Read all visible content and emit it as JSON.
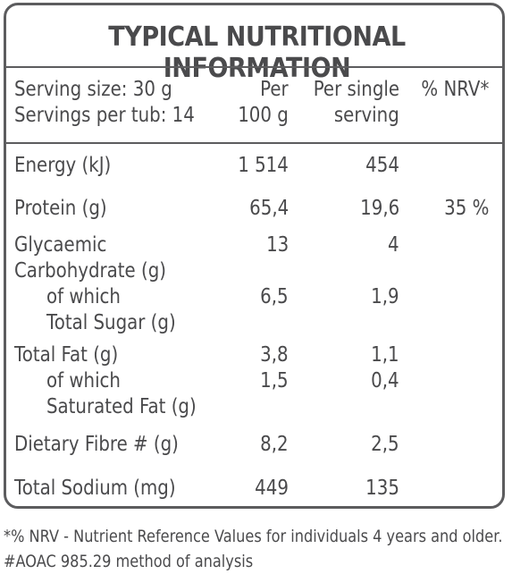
{
  "title": "TYPICAL NUTRITIONAL INFORMATION",
  "header": {
    "serving_size": "Serving size: 30 g",
    "servings_per_tub": "Servings per tub: 14",
    "per100_line1": "Per",
    "per100_line2": "100 g",
    "perserving_line1": "Per single",
    "perserving_line2": "serving",
    "nrv": "% NRV*"
  },
  "rows": {
    "energy": {
      "label": "Energy (kJ)",
      "per100": "1 514",
      "perserving": "454",
      "nrv": ""
    },
    "protein": {
      "label": "Protein (g)",
      "per100": "65,4",
      "perserving": "19,6",
      "nrv": "35 %"
    },
    "carb": {
      "label_line1": "Glycaemic",
      "label_line2": "Carbohydrate (g)",
      "per100": "13",
      "perserving": "4"
    },
    "sugar": {
      "label_line1": "of which",
      "label_line2": "Total Sugar (g)",
      "per100": "6,5",
      "perserving": "1,9"
    },
    "fat": {
      "label": "Total Fat (g)",
      "per100": "3,8",
      "perserving": "1,1"
    },
    "satfat": {
      "label_line1": "of which",
      "label_line2": "Saturated Fat (g)",
      "per100": "1,5",
      "perserving": "0,4"
    },
    "fibre": {
      "label": "Dietary Fibre # (g)",
      "per100": "8,2",
      "perserving": "2,5"
    },
    "sodium": {
      "label": "Total Sodium (mg)",
      "per100": "449",
      "perserving": "135"
    }
  },
  "footnotes": {
    "nrv_note": "*% NRV - Nutrient Reference Values for individuals 4 years and older.",
    "aoac_note": "#AOAC 985.29 method of analysis"
  }
}
